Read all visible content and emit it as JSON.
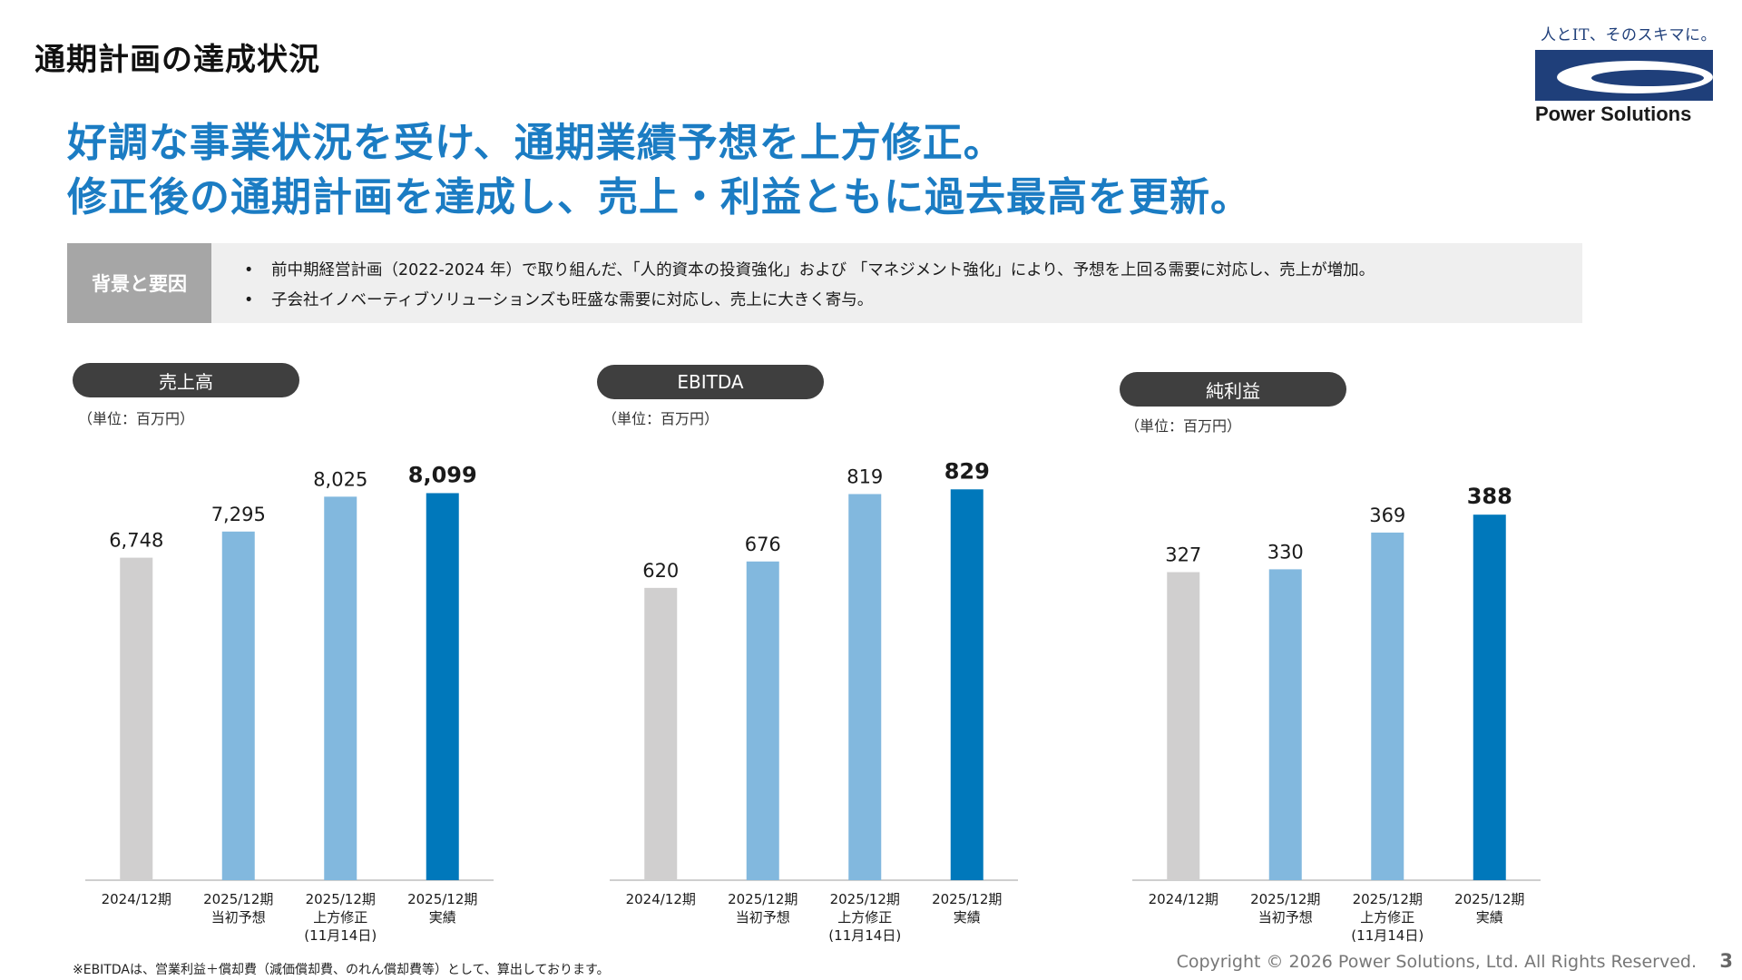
{
  "page": {
    "title": "通期計画の達成状況",
    "headline_line1": "好調な事業状況を受け、通期業績予想を上方修正。",
    "headline_line2": "修正後の通期計画を達成し、売上・利益ともに過去最高を更新。"
  },
  "brand": {
    "tagline": "人とIT、そのスキマに。",
    "name": "Power Solutions"
  },
  "background": {
    "label": "背景と要因",
    "bullets": [
      "前中期経営計画（2022-2024 年）で取り組んだ、「人的資本の投資強化」および 「マネジメント強化」により、予想を上回る需要に対応し、売上が増加。",
      "子会社イノベーティブソリューションズも旺盛な需要に対応し、売上に大きく寄与。"
    ]
  },
  "colors": {
    "prev_year": "#d0cfcf",
    "forecast": "#82b8de",
    "actual": "#0078bb",
    "headline": "#1b7cc3",
    "pill": "#3f3f3f"
  },
  "chart_data": [
    {
      "type": "bar",
      "title": "売上高",
      "unit": "（単位：百万円）",
      "categories": [
        "2024/12期",
        "2025/12期 当初予想",
        "2025/12期 上方修正 (11月14日)",
        "2025/12期 実績"
      ],
      "category_lines": [
        [
          "2024/12期"
        ],
        [
          "2025/12期",
          "当初予想"
        ],
        [
          "2025/12期",
          "上方修正",
          "(11月14日)"
        ],
        [
          "2025/12期",
          "実績"
        ]
      ],
      "values": [
        6748,
        7295,
        8025,
        8099
      ],
      "value_labels": [
        "6,748",
        "7,295",
        "8,025",
        "8,099"
      ],
      "ylim": [
        0,
        9000
      ]
    },
    {
      "type": "bar",
      "title": "EBITDA",
      "unit": "（単位：百万円）",
      "categories": [
        "2024/12期",
        "2025/12期 当初予想",
        "2025/12期 上方修正 (11月14日)",
        "2025/12期 実績"
      ],
      "category_lines": [
        [
          "2024/12期"
        ],
        [
          "2025/12期",
          "当初予想"
        ],
        [
          "2025/12期",
          "上方修正",
          "(11月14日)"
        ],
        [
          "2025/12期",
          "実績"
        ]
      ],
      "values": [
        620,
        676,
        819,
        829
      ],
      "value_labels": [
        "620",
        "676",
        "819",
        "829"
      ],
      "ylim": [
        0,
        920
      ]
    },
    {
      "type": "bar",
      "title": "純利益",
      "unit": "（単位：百万円）",
      "categories": [
        "2024/12期",
        "2025/12期 当初予想",
        "2025/12期 上方修正 (11月14日)",
        "2025/12期 実績"
      ],
      "category_lines": [
        [
          "2024/12期"
        ],
        [
          "2025/12期",
          "当初予想"
        ],
        [
          "2025/12期",
          "上方修正",
          "(11月14日)"
        ],
        [
          "2025/12期",
          "実績"
        ]
      ],
      "values": [
        327,
        330,
        369,
        388
      ],
      "value_labels": [
        "327",
        "330",
        "369",
        "388"
      ],
      "ylim": [
        0,
        445
      ]
    }
  ],
  "footnote": "※EBITDAは、営業利益＋償却費（減価償却費、のれん償却費等）として、算出しております。",
  "copyright": "Copyright © 2026 Power Solutions, Ltd. All Rights Reserved.",
  "page_number": "3"
}
